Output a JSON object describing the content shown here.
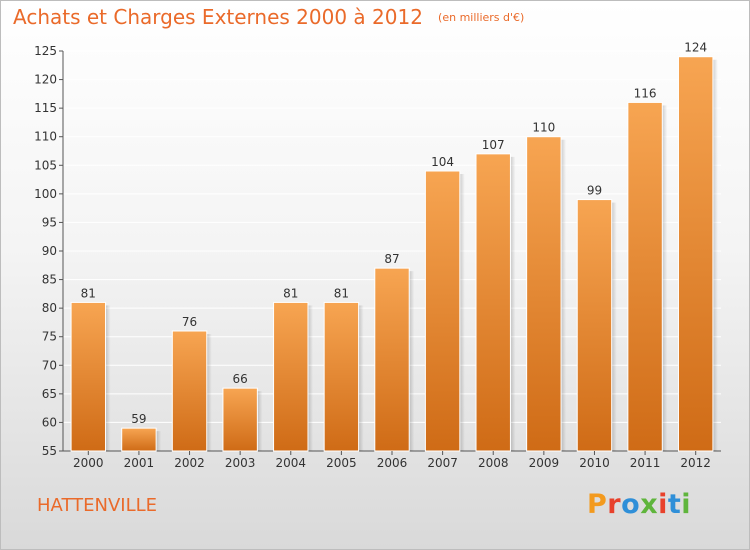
{
  "header": {
    "title": "Achats et Charges Externes 2000 à 2012",
    "unit": "(en milliers d'€)"
  },
  "footer": {
    "place": "HATTENVILLE",
    "logo_text": "Proxiti",
    "logo_colors": [
      "#f39a1e",
      "#e8412b",
      "#2f8fd8",
      "#5fb53c",
      "#e8412b",
      "#2f8fd8",
      "#5fb53c"
    ]
  },
  "colors": {
    "accent": "#ea6a2a",
    "bar_top": "#f7a552",
    "bar_bottom": "#cf6b16",
    "grid": "#ffffff"
  },
  "chart_data": {
    "type": "bar",
    "title": "Achats et Charges Externes 2000 à 2012",
    "subtitle": "(en milliers d'€)",
    "categories": [
      "2000",
      "2001",
      "2002",
      "2003",
      "2004",
      "2005",
      "2006",
      "2007",
      "2008",
      "2009",
      "2010",
      "2011",
      "2012"
    ],
    "values": [
      81,
      59,
      76,
      66,
      81,
      81,
      87,
      104,
      107,
      110,
      99,
      116,
      124
    ],
    "ylim": [
      55,
      125
    ],
    "yticks": [
      55,
      60,
      65,
      70,
      75,
      80,
      85,
      90,
      95,
      100,
      105,
      110,
      115,
      120,
      125
    ],
    "grid": true,
    "data_labels": true
  }
}
